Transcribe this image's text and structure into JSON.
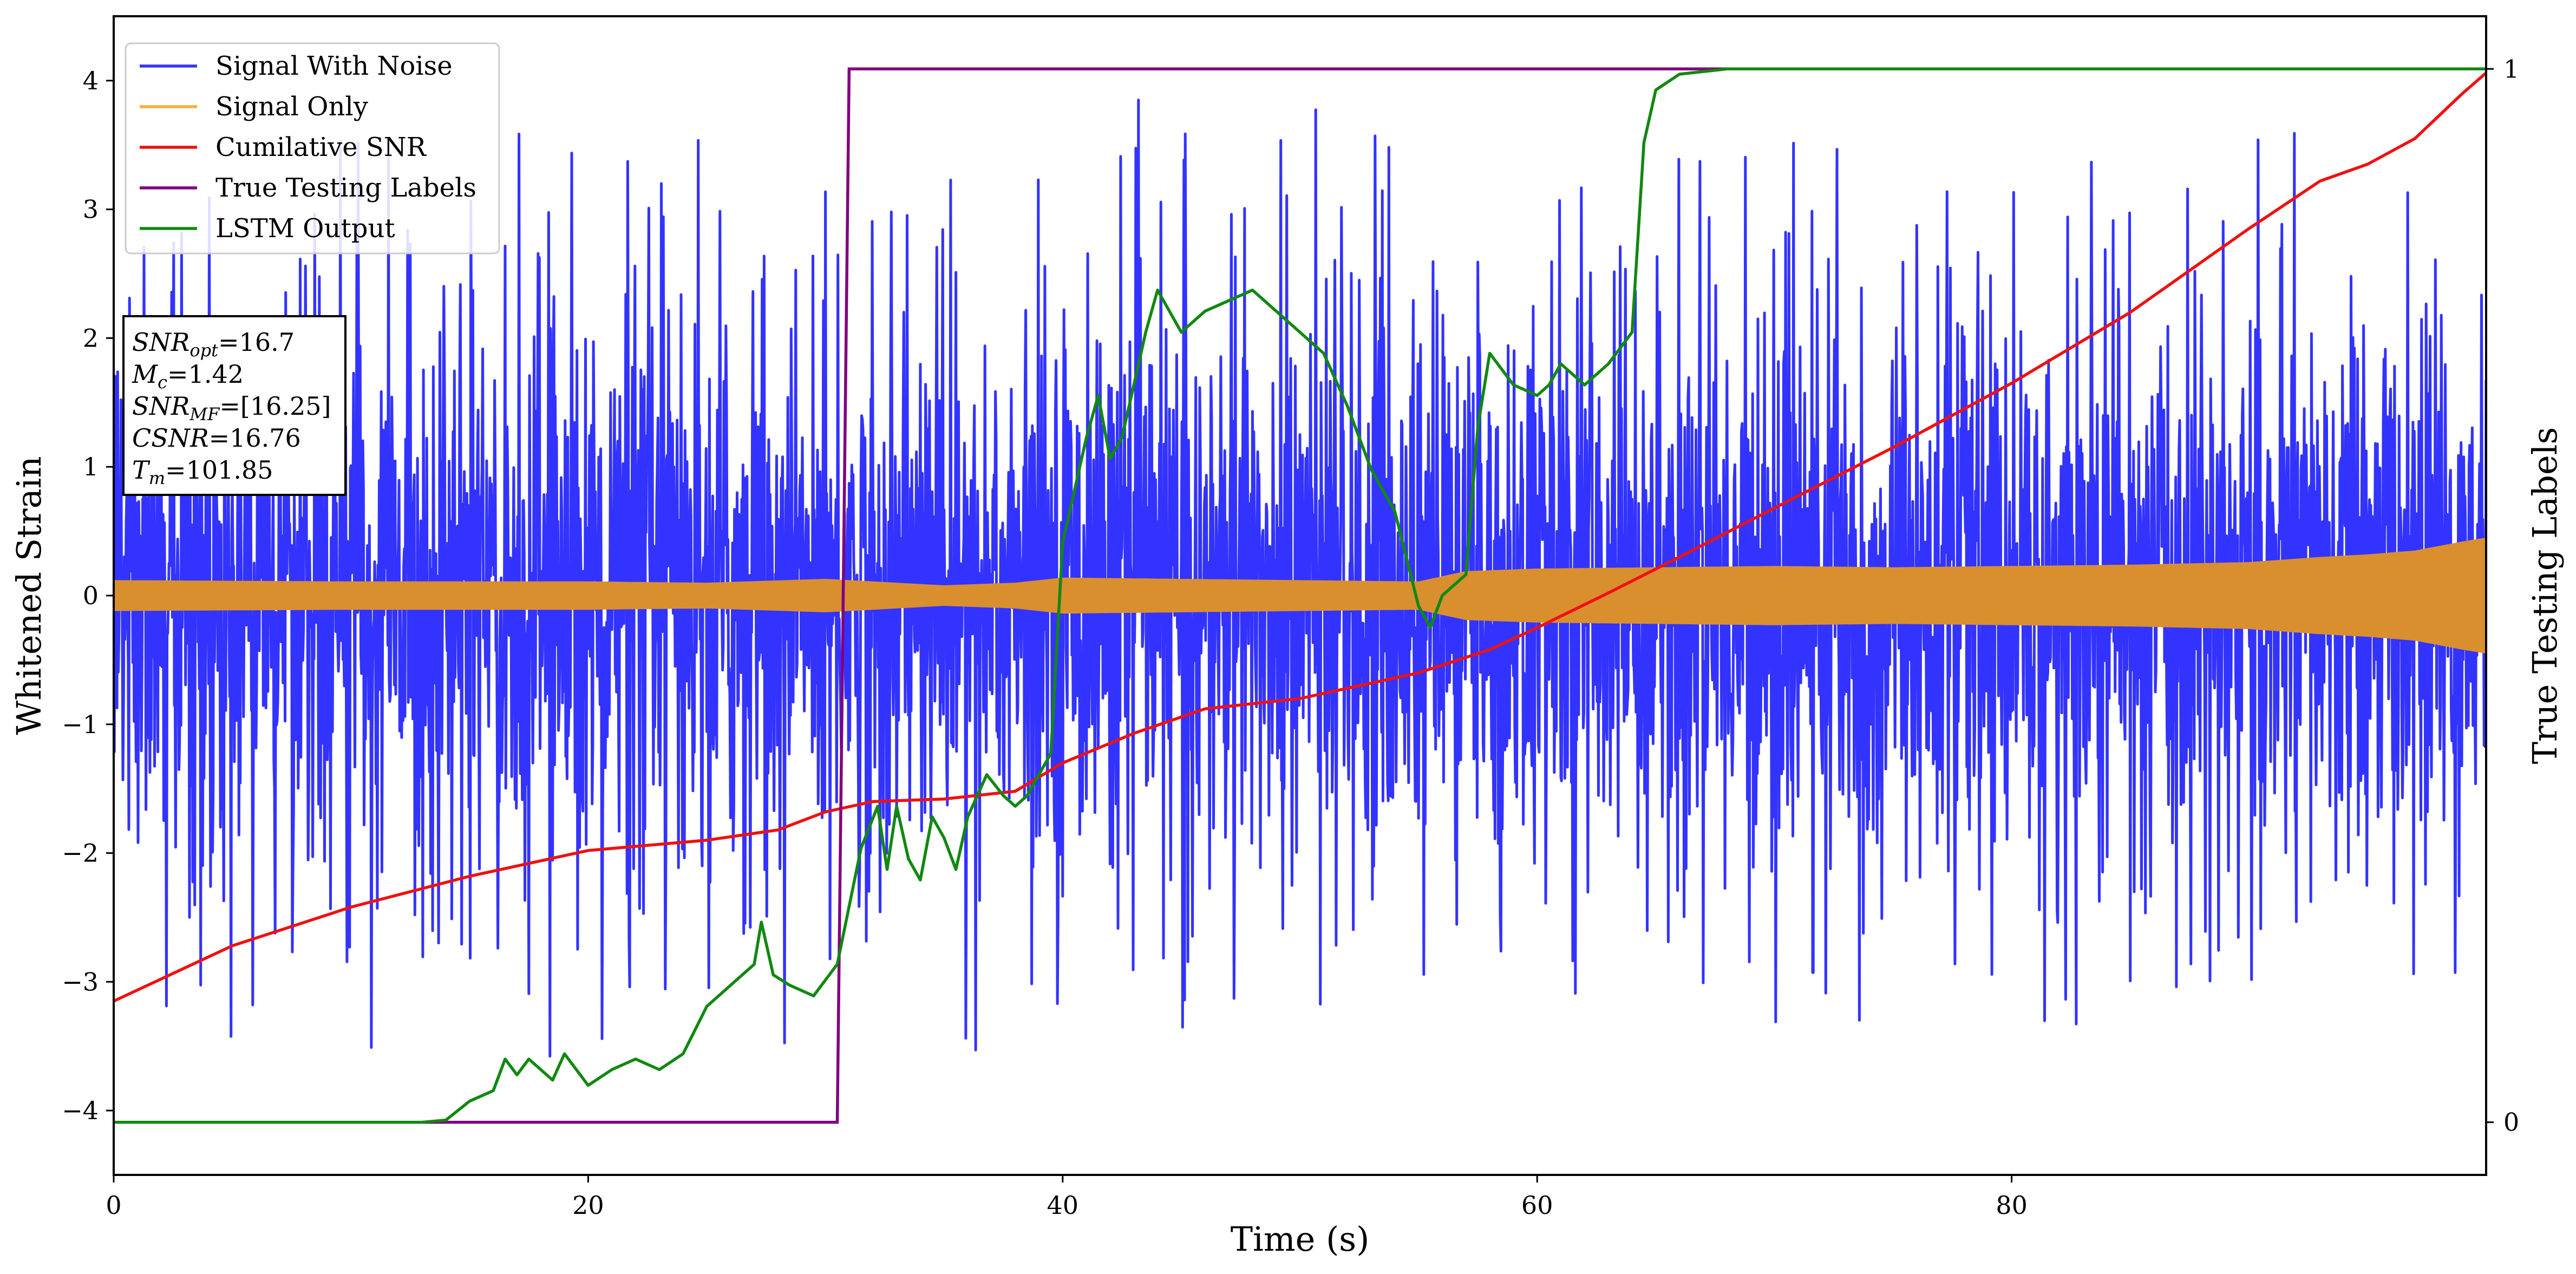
{
  "chart_data": {
    "type": "line",
    "xlabel": "Time (s)",
    "ylabel": "Whitened Strain",
    "ylabel_right": "True Testing Labels",
    "xlim": [
      0,
      100
    ],
    "ylim": [
      -4.5,
      4.5
    ],
    "ylim_right": [
      -0.05,
      1.05
    ],
    "x_ticks": [
      0,
      20,
      40,
      60,
      80
    ],
    "y_ticks": [
      -4,
      -3,
      -2,
      -1,
      0,
      1,
      2,
      3,
      4
    ],
    "y_ticks_right": [
      0,
      1
    ],
    "grid": false,
    "legend_position": "upper-left",
    "colors": {
      "signal_with_noise": "#3333ff",
      "signal_only": "#d98f2e",
      "legend_signal_only": "#f5b335",
      "cumulative_snr": "#ee1111",
      "true_labels": "#800080",
      "lstm_output": "#118811"
    },
    "series": [
      {
        "name": "Signal With Noise",
        "axis": "left",
        "kind": "noise",
        "typical_amplitude": 1.35,
        "max_peak": 3.85,
        "min_trough": -4.1
      },
      {
        "name": "Signal Only",
        "axis": "left",
        "kind": "band",
        "x": [
          0,
          10,
          20,
          25,
          30,
          31,
          35,
          38,
          40,
          45,
          50,
          55,
          57,
          60,
          65,
          70,
          75,
          80,
          85,
          90,
          93,
          95,
          97,
          99,
          100
        ],
        "amplitude": [
          0.12,
          0.11,
          0.11,
          0.1,
          0.13,
          0.12,
          0.08,
          0.1,
          0.14,
          0.13,
          0.12,
          0.11,
          0.19,
          0.21,
          0.22,
          0.23,
          0.22,
          0.23,
          0.24,
          0.26,
          0.3,
          0.32,
          0.35,
          0.42,
          0.45
        ]
      },
      {
        "name": "Cumilative SNR",
        "axis": "left",
        "x": [
          0,
          5,
          10,
          15,
          20,
          25,
          28,
          30,
          32,
          35,
          38,
          40,
          43,
          46,
          50,
          53,
          55,
          58,
          60,
          63,
          66,
          70,
          75,
          80,
          85,
          90,
          93,
          95,
          97,
          99,
          100
        ],
        "y": [
          -3.15,
          -2.72,
          -2.42,
          -2.18,
          -1.98,
          -1.9,
          -1.82,
          -1.68,
          -1.6,
          -1.58,
          -1.52,
          -1.3,
          -1.07,
          -0.88,
          -0.8,
          -0.68,
          -0.6,
          -0.42,
          -0.25,
          0.02,
          0.3,
          0.68,
          1.15,
          1.65,
          2.2,
          2.85,
          3.22,
          3.35,
          3.55,
          3.9,
          4.06
        ]
      },
      {
        "name": "True Testing Labels",
        "axis": "right",
        "x": [
          0,
          30.5,
          31,
          100
        ],
        "y": [
          0,
          0,
          1,
          1
        ]
      },
      {
        "name": "LSTM Output",
        "axis": "right",
        "x": [
          0,
          13,
          14,
          15,
          16,
          16.5,
          17,
          17.5,
          18,
          18.5,
          19,
          19.5,
          20,
          21,
          22,
          23,
          24,
          25,
          26,
          27,
          27.3,
          27.8,
          28.5,
          29.5,
          30.5,
          31.5,
          32.2,
          32.6,
          33,
          33.5,
          34,
          34.5,
          35,
          35.5,
          36,
          36.8,
          37.5,
          38,
          38.5,
          39,
          39.5,
          40,
          41,
          41.5,
          42,
          42.5,
          43,
          43.5,
          44,
          44.5,
          45,
          46,
          47,
          48,
          49,
          50,
          51,
          52,
          53,
          54,
          55,
          55.5,
          56,
          57,
          57.5,
          58,
          59,
          60,
          60.5,
          61,
          62,
          63,
          64,
          64.5,
          65,
          66,
          68,
          70,
          72,
          100
        ],
        "y": [
          0,
          0,
          0.002,
          0.02,
          0.03,
          0.06,
          0.045,
          0.06,
          0.05,
          0.04,
          0.065,
          0.05,
          0.035,
          0.05,
          0.06,
          0.05,
          0.065,
          0.11,
          0.13,
          0.15,
          0.19,
          0.14,
          0.13,
          0.12,
          0.15,
          0.26,
          0.3,
          0.24,
          0.3,
          0.25,
          0.23,
          0.29,
          0.27,
          0.24,
          0.29,
          0.33,
          0.31,
          0.3,
          0.31,
          0.33,
          0.35,
          0.55,
          0.65,
          0.69,
          0.63,
          0.65,
          0.7,
          0.75,
          0.79,
          0.77,
          0.75,
          0.77,
          0.78,
          0.79,
          0.77,
          0.75,
          0.73,
          0.68,
          0.62,
          0.58,
          0.49,
          0.47,
          0.5,
          0.52,
          0.66,
          0.73,
          0.7,
          0.69,
          0.7,
          0.72,
          0.7,
          0.72,
          0.75,
          0.93,
          0.98,
          0.995,
          1,
          1,
          1,
          1
        ]
      }
    ],
    "annotation_box": {
      "lines": [
        {
          "main": "SNR",
          "sub": "opt",
          "value": "=16.7"
        },
        {
          "main": "M",
          "sub": "c",
          "value": "=1.42"
        },
        {
          "main": "SNR",
          "sub": "MF",
          "value": "=[16.25]"
        },
        {
          "main": "CSNR",
          "sub": "",
          "value": "=16.76"
        },
        {
          "main": "T",
          "sub": "m",
          "value": "=101.85"
        }
      ]
    }
  }
}
